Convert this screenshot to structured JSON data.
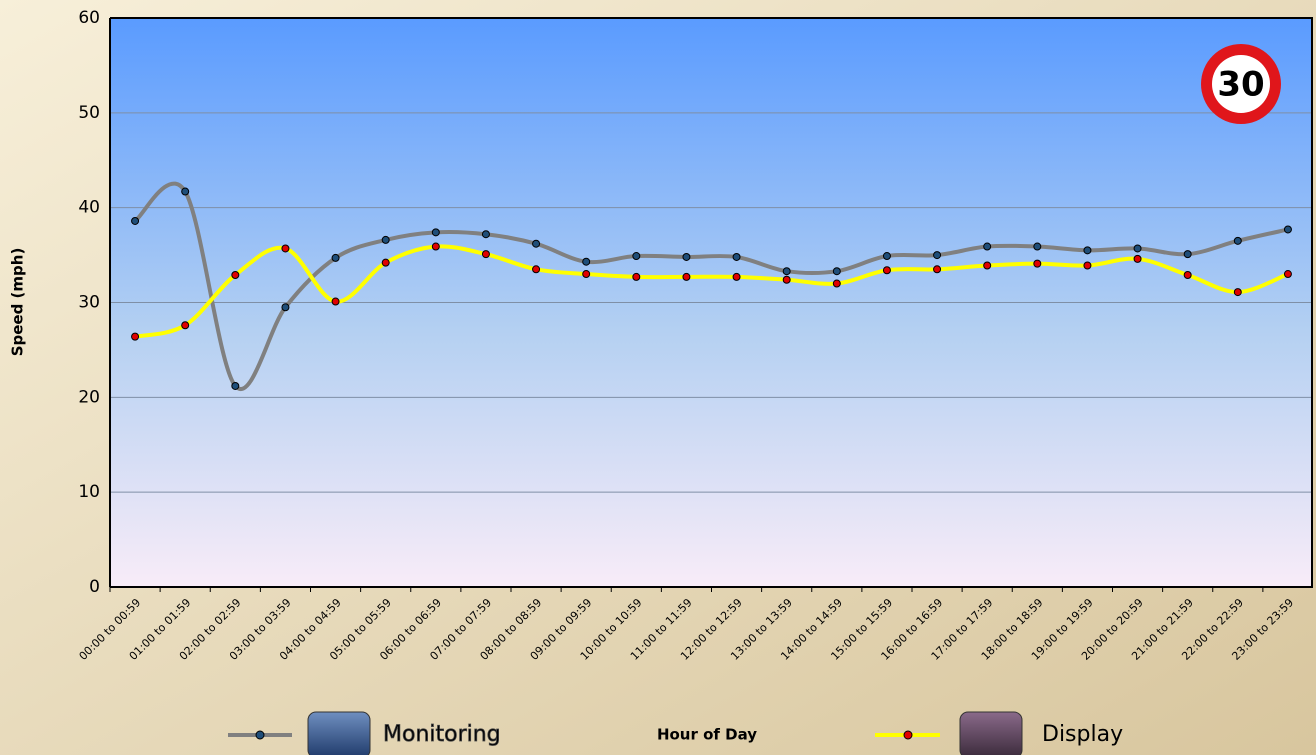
{
  "chart_data": {
    "type": "line",
    "y_label": "Speed (mph)",
    "x_label": "Hour of Day",
    "annotation": "30",
    "categories": [
      "00:00 to 00:59",
      "01:00 to 01:59",
      "02:00 to 02:59",
      "03:00 to 03:59",
      "04:00 to 04:59",
      "05:00 to 05:59",
      "06:00 to 06:59",
      "07:00 to 07:59",
      "08:00 to 08:59",
      "09:00 to 09:59",
      "10:00 to 10:59",
      "11:00 to 11:59",
      "12:00 to 12:59",
      "13:00 to 13:59",
      "14:00 to 14:59",
      "15:00 to 15:59",
      "16:00 to 16:59",
      "17:00 to 17:59",
      "18:00 to 18:59",
      "19:00 to 19:59",
      "20:00 to 20:59",
      "21:00 to 21:59",
      "22:00 to 22:59",
      "23:00 to 23:59"
    ],
    "series": [
      {
        "name": "Monitoring",
        "color": "#808080",
        "marker_color": "#1f4e79",
        "values": [
          38.6,
          41.7,
          21.2,
          29.5,
          34.7,
          36.6,
          37.4,
          37.2,
          36.2,
          34.3,
          34.9,
          34.8,
          34.8,
          33.3,
          33.3,
          34.9,
          35.0,
          35.9,
          35.9,
          35.5,
          35.7,
          35.1,
          36.5,
          37.7
        ]
      },
      {
        "name": "Display",
        "color": "#ffff00",
        "marker_color": "#e00000",
        "values": [
          26.4,
          27.6,
          32.9,
          35.7,
          30.1,
          34.2,
          35.9,
          35.1,
          33.5,
          33.0,
          32.7,
          32.7,
          32.7,
          32.4,
          32.0,
          33.4,
          33.5,
          33.9,
          34.1,
          33.9,
          34.6,
          32.9,
          31.1,
          33.0
        ]
      }
    ],
    "ylim": [
      0,
      60
    ],
    "yticks": [
      0,
      10,
      20,
      30,
      40,
      50,
      60
    ],
    "grid": true,
    "smooth": true
  }
}
